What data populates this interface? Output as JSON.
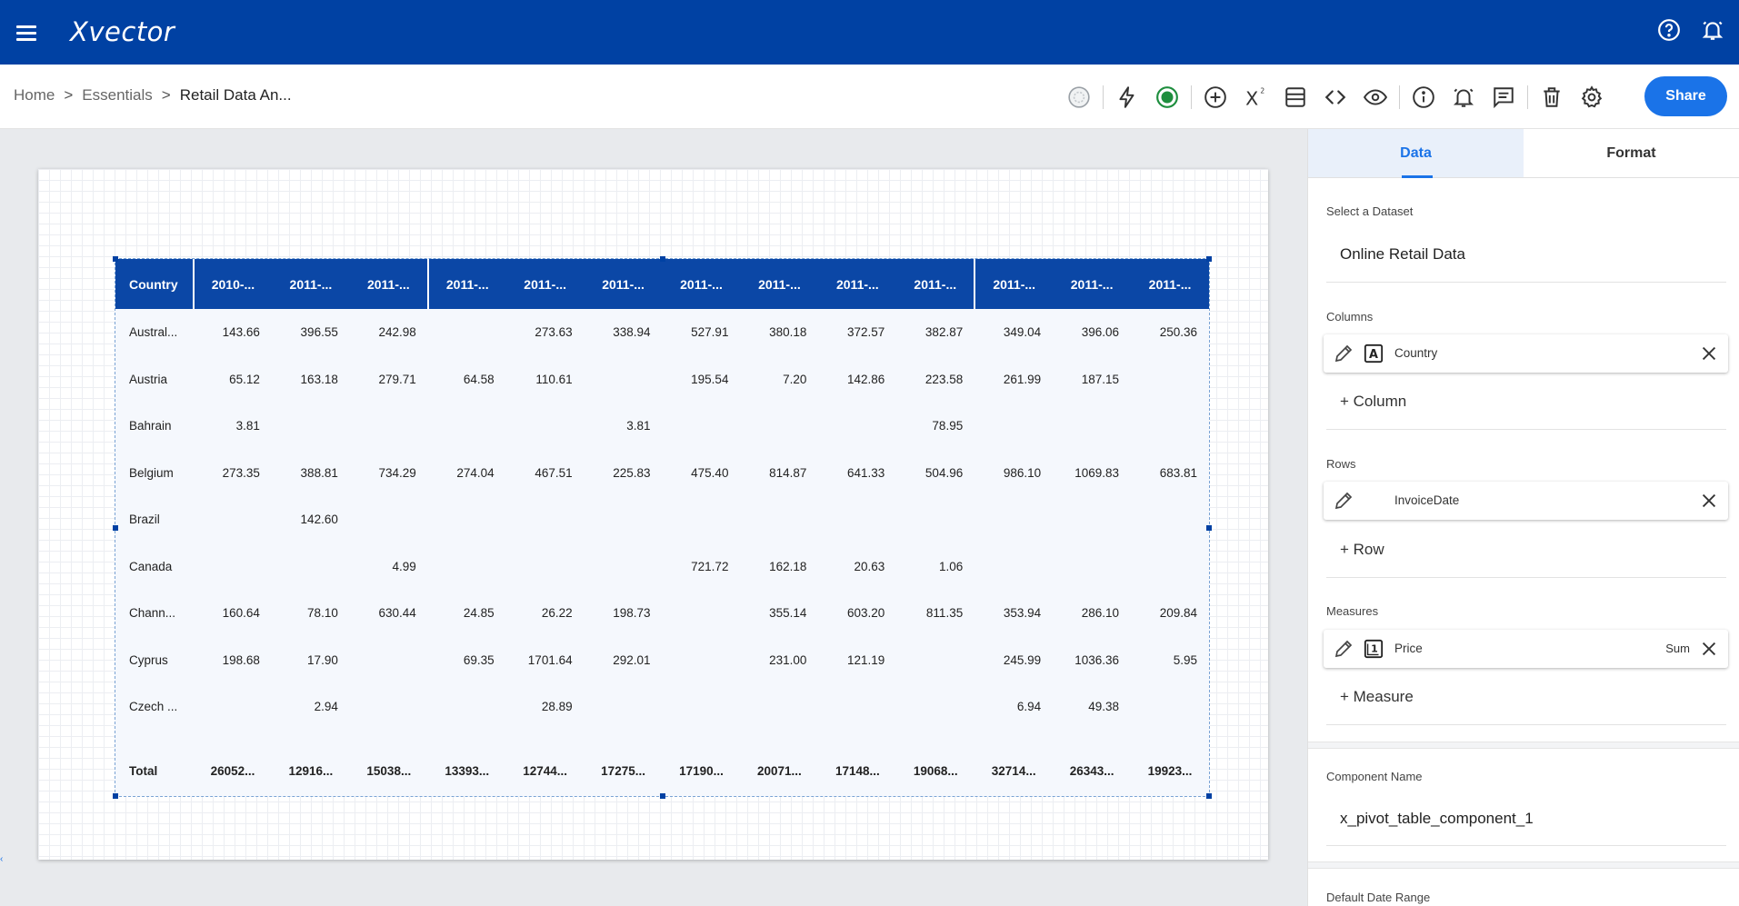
{
  "app": {
    "logo": "Xvector"
  },
  "breadcrumb": {
    "home": "Home",
    "essentials": "Essentials",
    "current": "Retail Data An...",
    "separator": ">"
  },
  "toolbar": {
    "share_label": "Share",
    "superscript_label": "X"
  },
  "colors": {
    "topbar": "#0041a3",
    "accent": "#1a73e8",
    "table_header": "#0b47a6",
    "status_green": "#1e8e3e"
  },
  "pivot": {
    "headers": [
      "Country",
      "2010-...",
      "2011-...",
      "2011-...",
      "2011-...",
      "2011-...",
      "2011-...",
      "2011-...",
      "2011-...",
      "2011-...",
      "2011-...",
      "2011-...",
      "2011-...",
      "2011-..."
    ],
    "rows": [
      [
        "Austral...",
        "143.66",
        "396.55",
        "242.98",
        "",
        "273.63",
        "338.94",
        "527.91",
        "380.18",
        "372.57",
        "382.87",
        "349.04",
        "396.06",
        "250.36"
      ],
      [
        "Austria",
        "65.12",
        "163.18",
        "279.71",
        "64.58",
        "110.61",
        "",
        "195.54",
        "7.20",
        "142.86",
        "223.58",
        "261.99",
        "187.15",
        ""
      ],
      [
        "Bahrain",
        "3.81",
        "",
        "",
        "",
        "",
        "3.81",
        "",
        "",
        "",
        "78.95",
        "",
        "",
        ""
      ],
      [
        "Belgium",
        "273.35",
        "388.81",
        "734.29",
        "274.04",
        "467.51",
        "225.83",
        "475.40",
        "814.87",
        "641.33",
        "504.96",
        "986.10",
        "1069.83",
        "683.81"
      ],
      [
        "Brazil",
        "",
        "142.60",
        "",
        "",
        "",
        "",
        "",
        "",
        "",
        "",
        "",
        "",
        ""
      ],
      [
        "Canada",
        "",
        "",
        "4.99",
        "",
        "",
        "",
        "721.72",
        "162.18",
        "20.63",
        "1.06",
        "",
        "",
        ""
      ],
      [
        "Chann...",
        "160.64",
        "78.10",
        "630.44",
        "24.85",
        "26.22",
        "198.73",
        "",
        "355.14",
        "603.20",
        "811.35",
        "353.94",
        "286.10",
        "209.84"
      ],
      [
        "Cyprus",
        "198.68",
        "17.90",
        "",
        "69.35",
        "1701.64",
        "292.01",
        "",
        "231.00",
        "121.19",
        "",
        "245.99",
        "1036.36",
        "5.95"
      ],
      [
        "Czech ...",
        "",
        "2.94",
        "",
        "",
        "28.89",
        "",
        "",
        "",
        "",
        "",
        "6.94",
        "49.38",
        ""
      ]
    ],
    "total": [
      "Total",
      "26052...",
      "12916...",
      "15038...",
      "13393...",
      "12744...",
      "17275...",
      "17190...",
      "20071...",
      "17148...",
      "19068...",
      "32714...",
      "26343...",
      "19923..."
    ]
  },
  "panel": {
    "tabs": [
      "Data",
      "Format"
    ],
    "dataset_label": "Select a Dataset",
    "dataset_value": "Online Retail Data",
    "columns_label": "Columns",
    "column_field": {
      "type_letter": "A",
      "name": "Country"
    },
    "add_column": "+ Column",
    "rows_label": "Rows",
    "row_field": {
      "name": "InvoiceDate"
    },
    "add_row": "+ Row",
    "measures_label": "Measures",
    "measure_field": {
      "type_letter": "1",
      "name": "Price",
      "aggregation": "Sum"
    },
    "add_measure": "+ Measure",
    "component_name_label": "Component Name",
    "component_name_value": "x_pivot_table_component_1",
    "default_date_range_label": "Default Date Range"
  }
}
